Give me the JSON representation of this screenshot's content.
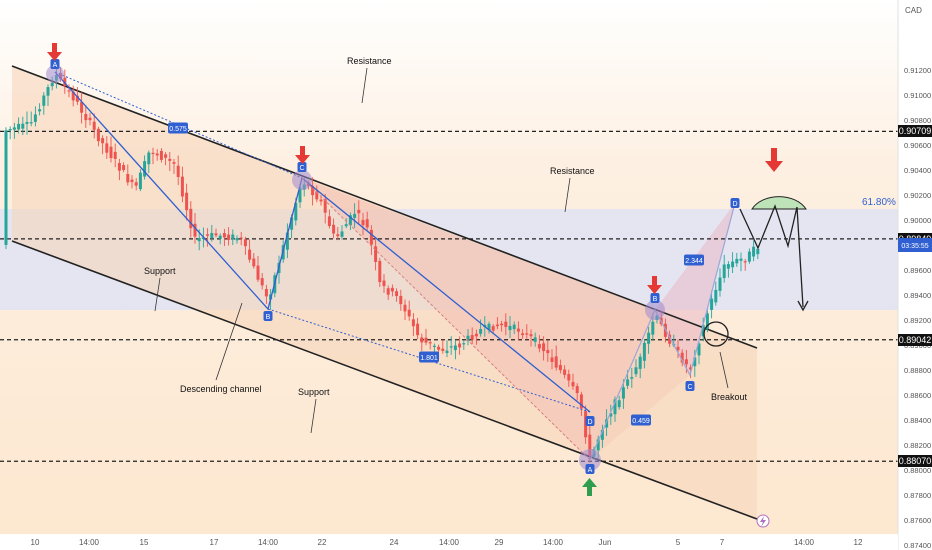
{
  "currency": "CAD",
  "current_price": "0.89",
  "countdown": "03:35:55",
  "chart_data": {
    "type": "candlestick",
    "title": "",
    "xlabel": "",
    "ylabel": "",
    "ylim": [
      0.8736,
      0.9176
    ],
    "yticks": [
      "0.87400",
      "0.87600",
      "0.87800",
      "0.88000",
      "0.88200",
      "0.88400",
      "0.88600",
      "0.88800",
      "0.89000",
      "0.89200",
      "0.89400",
      "0.89600",
      "0.89800",
      "0.90000",
      "0.90200",
      "0.90400",
      "0.90600",
      "0.90800",
      "0.91000",
      "0.91200"
    ],
    "xticks": [
      "10",
      "14:00",
      "15",
      "17",
      "14:00",
      "22",
      "24",
      "14:00",
      "29",
      "14:00",
      "Jun",
      "5",
      "7",
      "14:00",
      "12"
    ],
    "levels": [
      {
        "value": 0.90709,
        "label": "0.90709"
      },
      {
        "value": 0.89849,
        "label": "0.89849"
      },
      {
        "value": 0.89042,
        "label": "0.89042"
      },
      {
        "value": 0.8807,
        "label": "0.88070"
      }
    ],
    "fib_label": "61.80%",
    "annotations": {
      "resistance_1": "Resistance",
      "resistance_2": "Resistance",
      "support_1": "Support",
      "support_2": "Support",
      "descending_channel": "Descending channel",
      "breakout": "Breakout"
    },
    "pattern_points": [
      "A",
      "B",
      "C",
      "D",
      "A",
      "B",
      "C",
      "D"
    ],
    "ratios": [
      "0.575",
      "1.801",
      "2.344",
      "0.459"
    ],
    "candle_colors": {
      "up": "#26a69a",
      "down": "#ef5350"
    }
  }
}
